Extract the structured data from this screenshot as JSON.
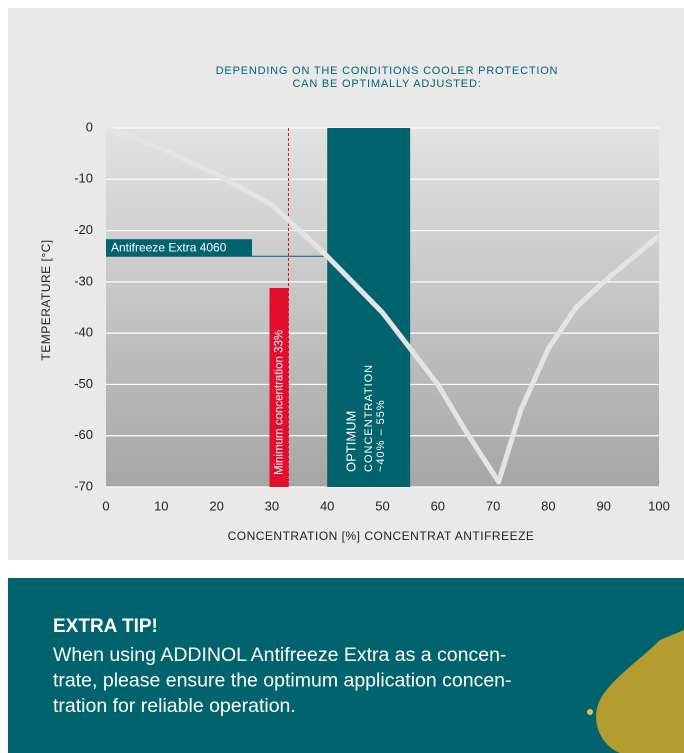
{
  "chart_data": {
    "type": "line",
    "title": [
      "DEPENDING ON THE CONDITIONS COOLER PROTECTION",
      "CAN BE OPTIMALLY ADJUSTED:"
    ],
    "xlabel": "CONCENTRATION [%] CONCENTRAT ANTIFREEZE",
    "ylabel": "TEMPERATURE [°C]",
    "xlim": [
      0,
      100
    ],
    "xticks": [
      0,
      10,
      20,
      30,
      40,
      50,
      60,
      70,
      80,
      90,
      100
    ],
    "ylim": [
      -70,
      0
    ],
    "yticks": [
      0,
      -10,
      -20,
      -30,
      -40,
      -50,
      -60,
      -70
    ],
    "grid": true,
    "series": [
      {
        "color": "#e4e4e4",
        "x": [
          0,
          10,
          20,
          30,
          40,
          50,
          55,
          60,
          65,
          71,
          75,
          80,
          85,
          90,
          100
        ],
        "values": [
          0,
          -4,
          -9,
          -15,
          -25,
          -36,
          -43,
          -50,
          -59,
          -69,
          -55,
          -43,
          -35,
          -30,
          -21
        ]
      }
    ],
    "product": {
      "label": "Antifreeze Extra 4060",
      "value": -25,
      "color": "#00636e"
    },
    "minimum": {
      "label": "Minimum concentration 33%",
      "value": 33,
      "color": "#e30d2e"
    },
    "optimum": {
      "lines": [
        "OPTIMUM",
        "CONCENTRATION",
        "~40% – 55%"
      ],
      "range": [
        40,
        55
      ],
      "color": "#00636e"
    }
  },
  "tip": {
    "title": "EXTRA TIP!",
    "lines": [
      "When using ADDINOL Antifreeze Extra as a concen-",
      "trate, please ensure the optimum application concen-",
      "tration for reliable operation."
    ]
  }
}
